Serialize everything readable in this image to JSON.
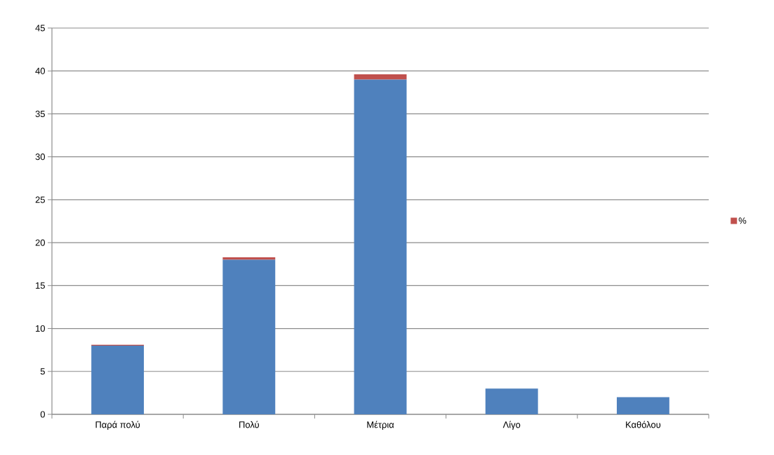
{
  "chart_data": {
    "type": "bar",
    "stacked": true,
    "categories": [
      "Παρά πολύ",
      "Πολύ",
      "Μέτρια",
      "Λίγο",
      "Καθόλου"
    ],
    "series": [
      {
        "color": "#4f81bd",
        "values": [
          8,
          18,
          39,
          3,
          2
        ]
      },
      {
        "name": "%",
        "color": "#c0504d",
        "values": [
          0.1,
          0.3,
          0.6,
          null,
          null
        ]
      }
    ],
    "ylim": [
      0,
      45
    ],
    "yticks": [
      0,
      5,
      10,
      15,
      20,
      25,
      30,
      35,
      40,
      45
    ],
    "grid": "y",
    "legend": "right"
  }
}
